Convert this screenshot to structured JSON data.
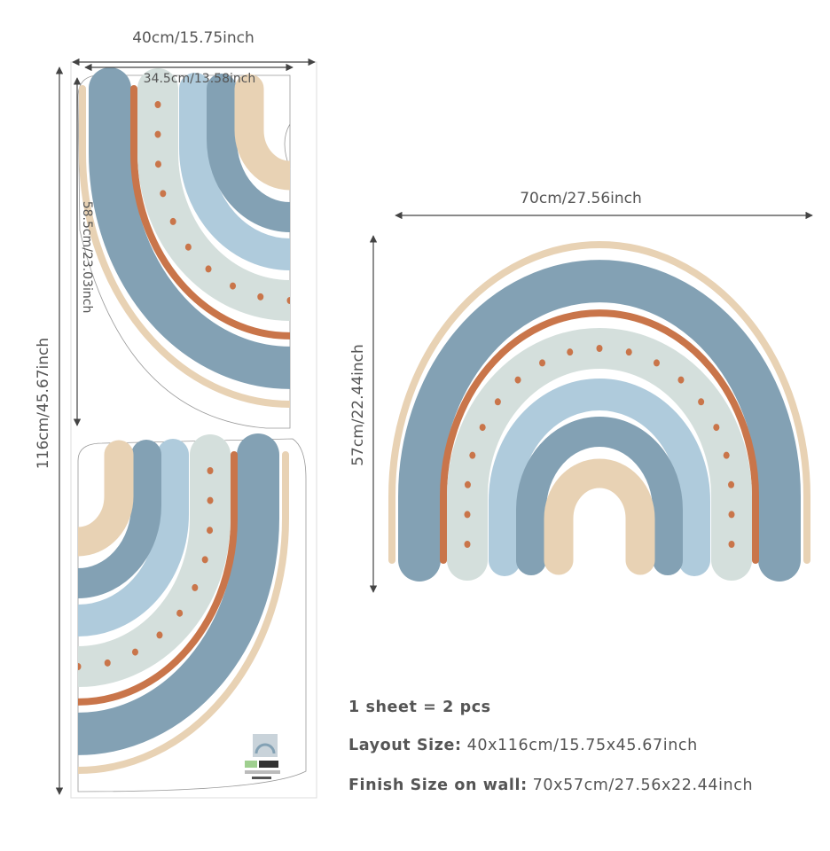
{
  "dimensions": {
    "sheet_width": "40cm/15.75inch",
    "piece_width": "34.5cm/13.58inch",
    "piece_height": "58.5cm/23.03inch",
    "sheet_height": "116cm/45.67inch",
    "finish_width": "70cm/27.56inch",
    "finish_height": "57cm/22.44inch"
  },
  "info": {
    "pieces": "1 sheet = 2 pcs",
    "layout_label": "Layout Size:",
    "layout_value": "40x116cm/15.75x45.67inch",
    "finish_label": "Finish Size on wall:",
    "finish_value": "70x57cm/27.56x22.44inch"
  },
  "colors": {
    "dark_blue": "#83a1b4",
    "light_blue": "#afcbdc",
    "sage": "#d4dfdc",
    "terracotta": "#c9754a",
    "beige": "#e8d2b4",
    "dot_count": 19
  }
}
